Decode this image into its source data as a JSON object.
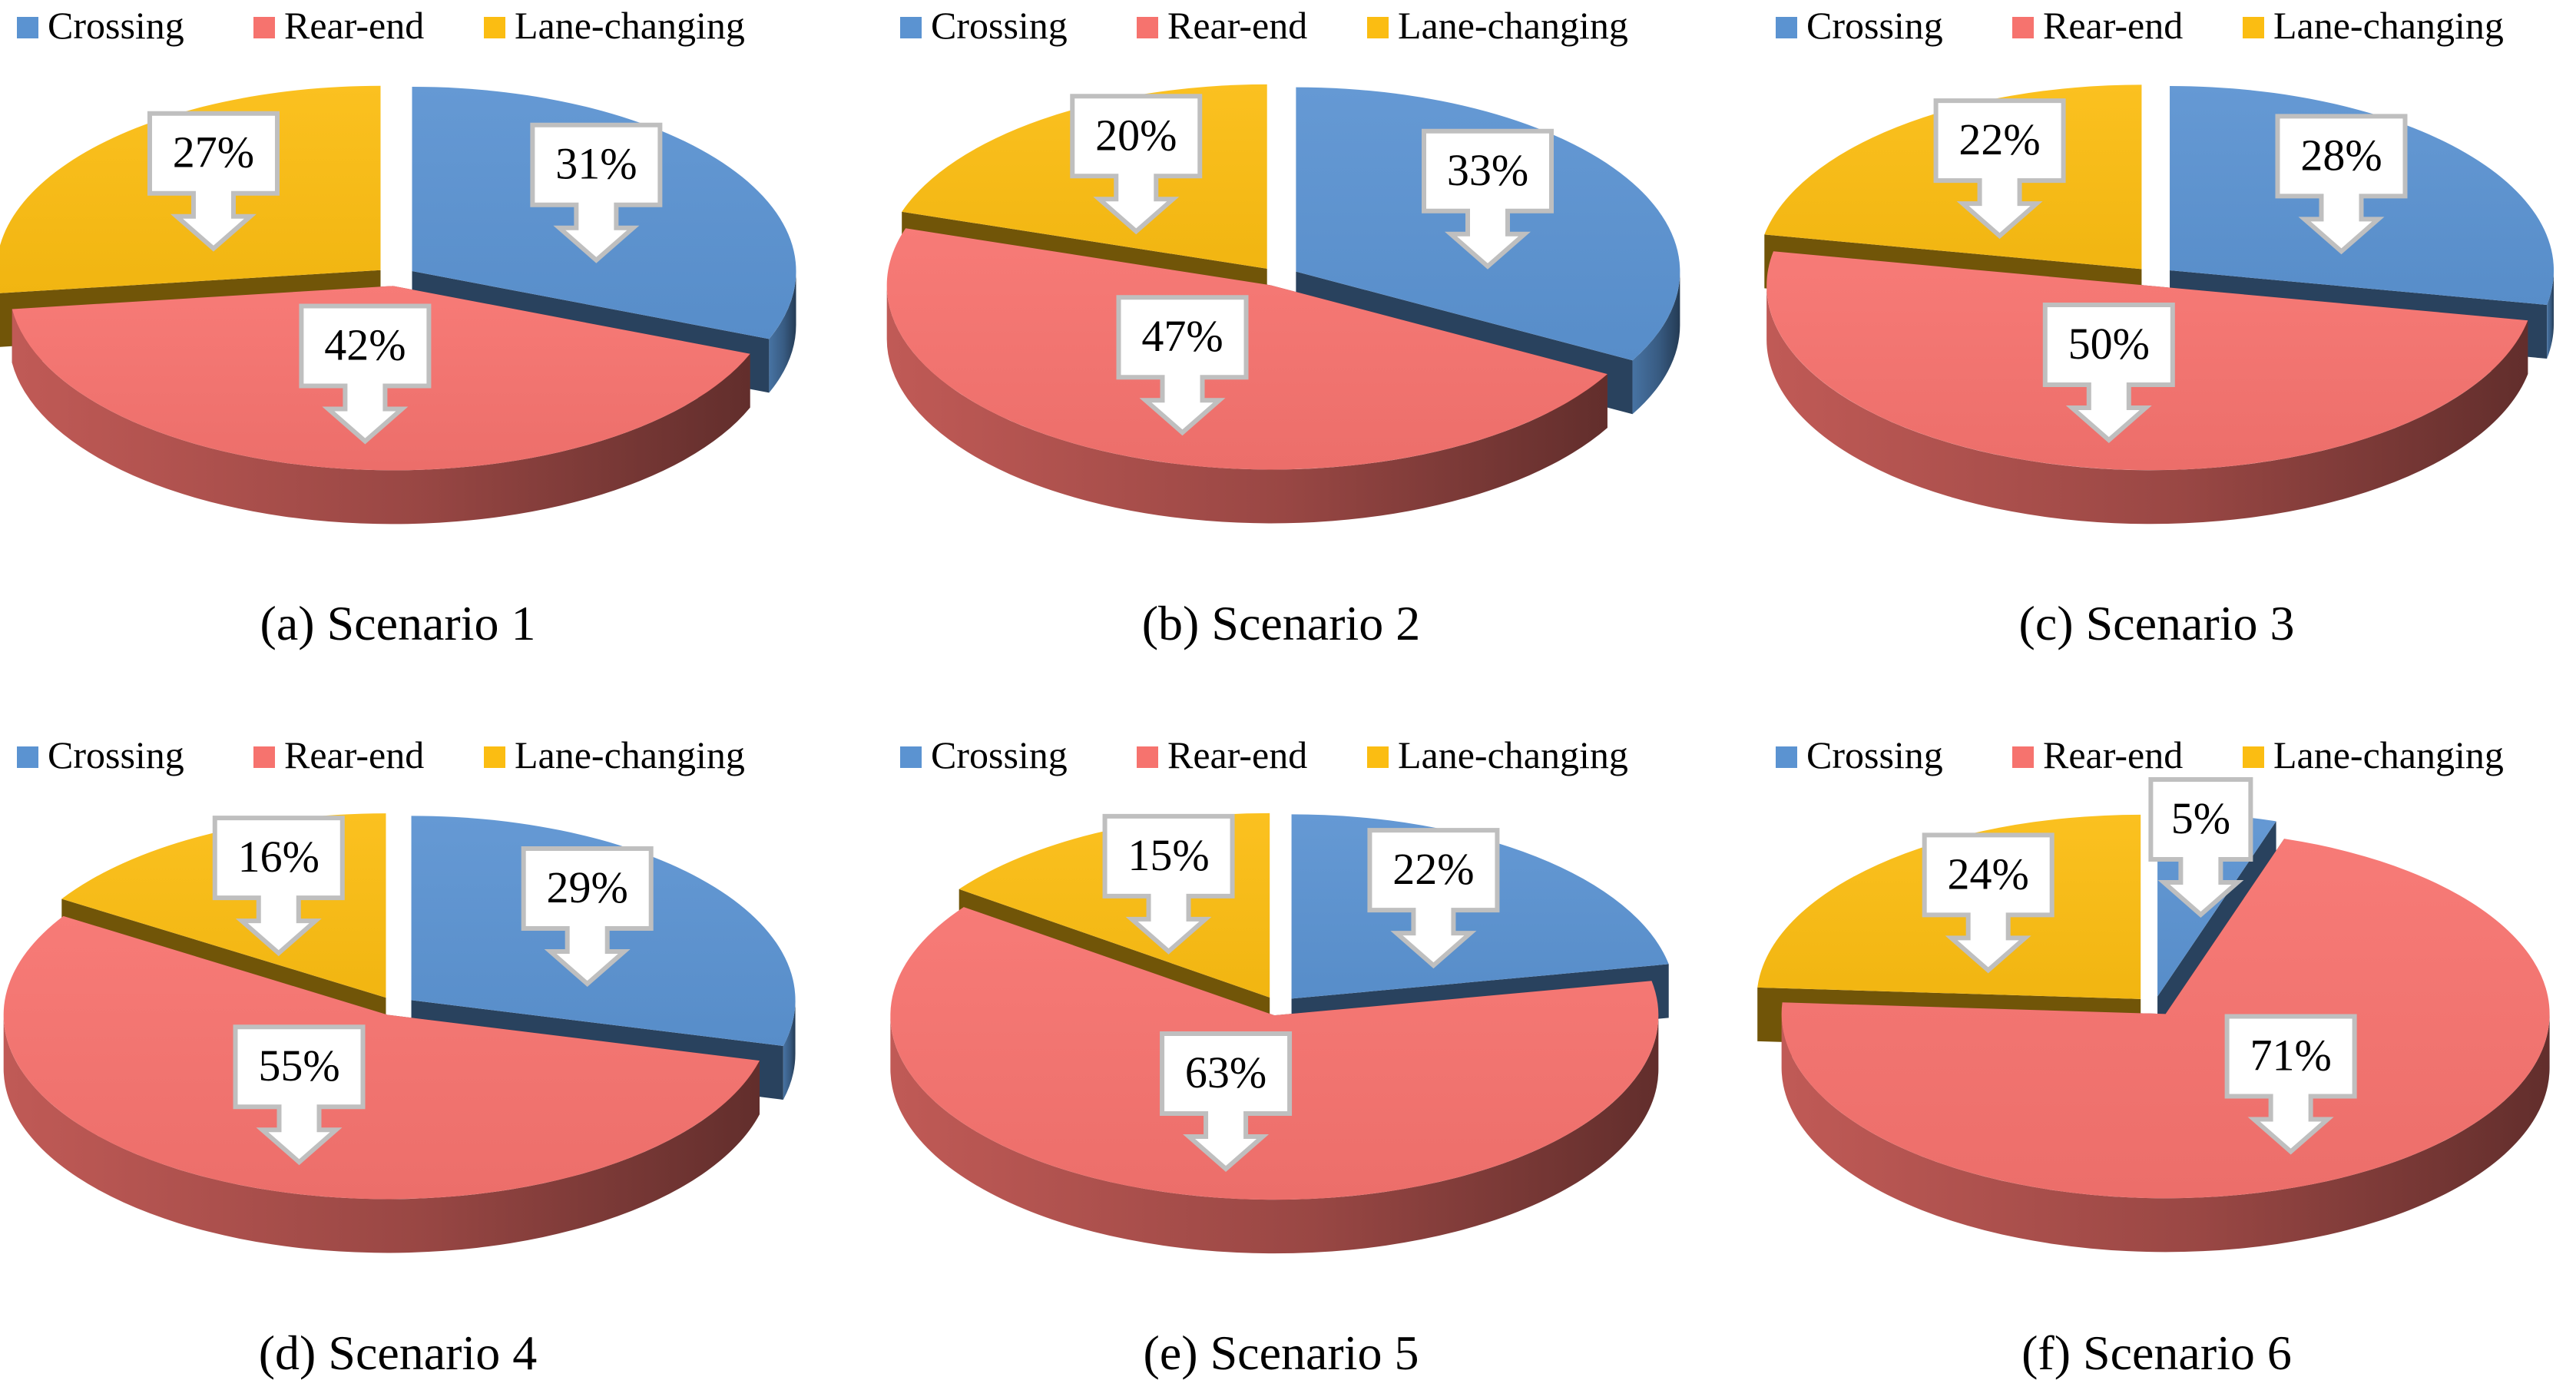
{
  "legend_labels": [
    "Crossing",
    "Rear-end",
    "Lane-changing"
  ],
  "colors": {
    "crossing": "#5B93D1",
    "rear_end": "#F6736E",
    "lane_changing": "#FBBD12",
    "label_border": "#BFBFBF",
    "text": "#000000"
  },
  "chart_data": [
    {
      "type": "pie",
      "title": "(a) Scenario 1",
      "legend_position": "top",
      "series": [
        {
          "name": "Crossing",
          "value": 31,
          "label": "31%"
        },
        {
          "name": "Rear-end",
          "value": 42,
          "label": "42%"
        },
        {
          "name": "Lane-changing",
          "value": 27,
          "label": "27%"
        }
      ]
    },
    {
      "type": "pie",
      "title": "(b) Scenario 2",
      "legend_position": "top",
      "series": [
        {
          "name": "Crossing",
          "value": 33,
          "label": "33%"
        },
        {
          "name": "Rear-end",
          "value": 47,
          "label": "47%"
        },
        {
          "name": "Lane-changing",
          "value": 20,
          "label": "20%"
        }
      ]
    },
    {
      "type": "pie",
      "title": "(c) Scenario 3",
      "legend_position": "top",
      "series": [
        {
          "name": "Crossing",
          "value": 28,
          "label": "28%"
        },
        {
          "name": "Rear-end",
          "value": 50,
          "label": "50%"
        },
        {
          "name": "Lane-changing",
          "value": 22,
          "label": "22%"
        }
      ]
    },
    {
      "type": "pie",
      "title": "(d) Scenario 4",
      "legend_position": "top",
      "series": [
        {
          "name": "Crossing",
          "value": 29,
          "label": "29%"
        },
        {
          "name": "Rear-end",
          "value": 55,
          "label": "55%"
        },
        {
          "name": "Lane-changing",
          "value": 16,
          "label": "16%"
        }
      ]
    },
    {
      "type": "pie",
      "title": "(e) Scenario 5",
      "legend_position": "top",
      "series": [
        {
          "name": "Crossing",
          "value": 22,
          "label": "22%"
        },
        {
          "name": "Rear-end",
          "value": 63,
          "label": "63%"
        },
        {
          "name": "Lane-changing",
          "value": 15,
          "label": "15%"
        }
      ]
    },
    {
      "type": "pie",
      "title": "(f) Scenario 6",
      "legend_position": "top",
      "series": [
        {
          "name": "Crossing",
          "value": 5,
          "label": "5%"
        },
        {
          "name": "Rear-end",
          "value": 71,
          "label": "71%"
        },
        {
          "name": "Lane-changing",
          "value": 24,
          "label": "24%"
        }
      ]
    }
  ]
}
